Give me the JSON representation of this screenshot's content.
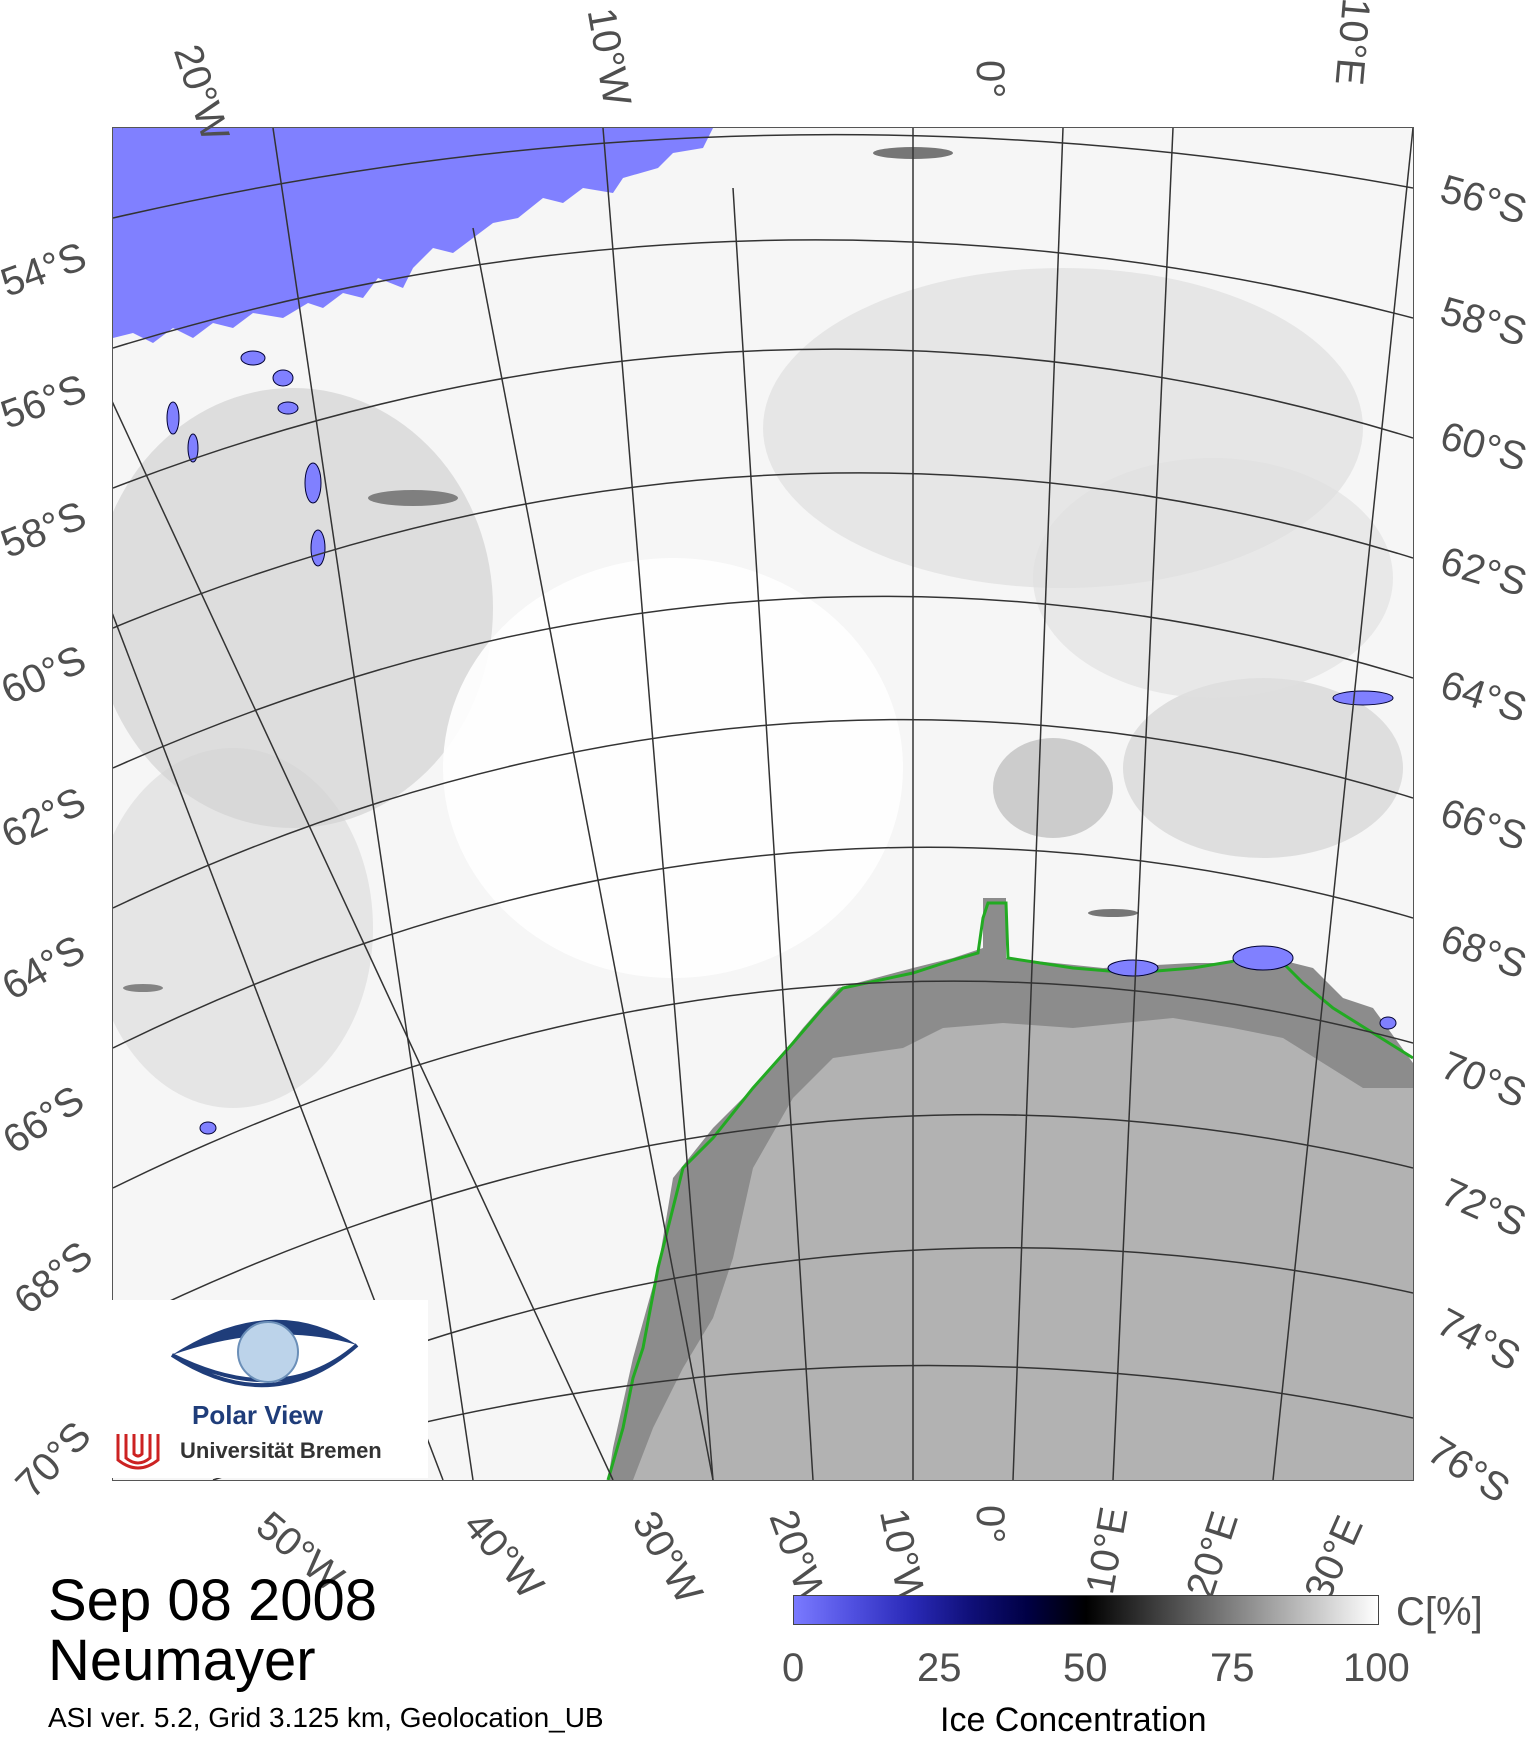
{
  "map": {
    "top_lon_labels": [
      "20°W",
      "10°W",
      "0°",
      "10°E"
    ],
    "bottom_lon_labels": [
      "50°W",
      "40°W",
      "30°W",
      "20°W",
      "10°W",
      "0°",
      "10°E",
      "20°E",
      "30°E"
    ],
    "left_lat_labels": [
      "54°S",
      "56°S",
      "58°S",
      "60°S",
      "62°S",
      "64°S",
      "66°S",
      "68°S",
      "70°S"
    ],
    "right_lat_labels": [
      "56°S",
      "58°S",
      "60°S",
      "62°S",
      "64°S",
      "66°S",
      "68°S",
      "70°S",
      "72°S",
      "74°S",
      "76°S"
    ],
    "colors": {
      "open_water": "#8080ff",
      "sea_ice": "#f4f4f4",
      "land": "#b2b2b2",
      "ice_shelf": "#8c8c8c",
      "coastline": "#22aa22",
      "grid": "#333333"
    }
  },
  "logo": {
    "name": "Polar View",
    "institution": "Universität Bremen"
  },
  "caption": {
    "date": "Sep 08 2008",
    "station": "Neumayer",
    "meta": "ASI ver. 5.2,  Grid 3.125 km, Geolocation_UB"
  },
  "colorbar": {
    "ticks": [
      "0",
      "25",
      "50",
      "75",
      "100"
    ],
    "unit": "C[%]",
    "title": "Ice Concentration",
    "stops": [
      "#7a7aff",
      "#5050e0",
      "#2a2ab8",
      "#10107a",
      "#000044",
      "#000000",
      "#333333",
      "#666666",
      "#999999",
      "#cccccc",
      "#ffffff"
    ]
  }
}
